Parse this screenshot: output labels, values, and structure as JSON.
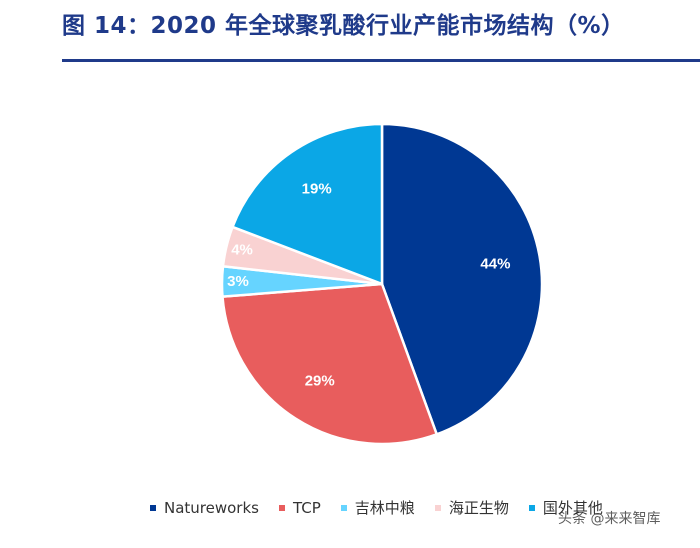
{
  "title": "图 14：2020 年全球聚乳酸行业产能市场结构（%）",
  "watermark": "头条 @来来智库",
  "chart_data": {
    "type": "pie",
    "title": "图 14：2020 年全球聚乳酸行业产能市场结构（%）",
    "categories": [
      "Natureworks",
      "TCP",
      "吉林中粮",
      "海正生物",
      "国外其他"
    ],
    "values": [
      44,
      29,
      3,
      4,
      19
    ],
    "labels": [
      "44%",
      "29%",
      "3%",
      "4%",
      "19%"
    ],
    "colors": [
      "#003893",
      "#E85D5D",
      "#66D4FF",
      "#F9D2D2",
      "#0BA7E6"
    ],
    "legend_position": "bottom",
    "start": "12 o'clock",
    "direction": "clockwise"
  }
}
